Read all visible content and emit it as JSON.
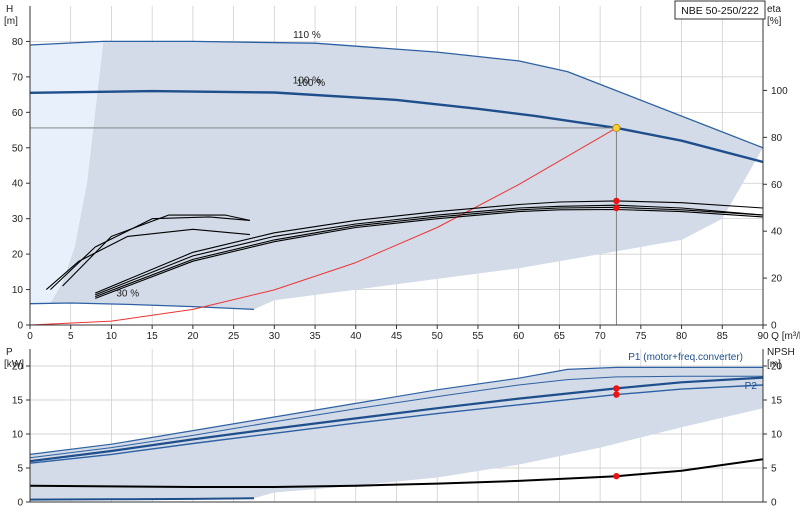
{
  "model": "NBE 50-250/222",
  "chart_data": [
    {
      "type": "line",
      "panel": "head",
      "x_label": "Q",
      "x_unit": "[m³/h]",
      "xlim": [
        0,
        90
      ],
      "x_ticks": [
        0,
        5,
        10,
        15,
        20,
        25,
        30,
        35,
        40,
        45,
        50,
        55,
        60,
        65,
        70,
        75,
        80,
        85,
        90
      ],
      "y_left_label": "H",
      "y_left_unit": "[m]",
      "y_left_lim": [
        0,
        90
      ],
      "y_left_ticks": [
        0,
        10,
        20,
        30,
        40,
        50,
        60,
        70,
        80
      ],
      "y_right_label": "eta",
      "y_right_unit": "[%]",
      "y_right_lim": [
        0,
        136
      ],
      "y_right_ticks": [
        0,
        20,
        40,
        60,
        80,
        100
      ],
      "grid": true,
      "duty_point": {
        "q": 72,
        "h": 55.6
      },
      "eta_markers": [
        {
          "q": 72,
          "h": 35
        },
        {
          "q": 72,
          "h": 33
        }
      ],
      "labels": [
        {
          "text": "110 %",
          "q": 34,
          "h": 81
        },
        {
          "text": "100 %",
          "q": 34,
          "h": 68.2
        },
        {
          "text": "100 %",
          "q": 34.5,
          "h": 67.5
        },
        {
          "text": "30 %",
          "q": 12,
          "h": 8
        }
      ],
      "series": [
        {
          "label": "110 %",
          "q": [
            0,
            9,
            20,
            35,
            50,
            60,
            66,
            90
          ],
          "h": [
            79,
            80,
            80,
            79.5,
            77,
            74.5,
            71.5,
            50
          ]
        },
        {
          "label": "100 %",
          "q": [
            0,
            15,
            30,
            45,
            55,
            62,
            72,
            80,
            90
          ],
          "h": [
            65.5,
            66,
            65.6,
            63.5,
            61,
            59,
            55.6,
            52,
            46
          ]
        },
        {
          "label": "30 %",
          "q": [
            0,
            5,
            12,
            20,
            27.5
          ],
          "h": [
            6,
            6.2,
            5.8,
            5.2,
            4.4
          ]
        },
        {
          "label": "system curve",
          "q": [
            0,
            10,
            20,
            30,
            40,
            50,
            60,
            72
          ],
          "h": [
            0,
            1.1,
            4.4,
            9.9,
            17.6,
            27.5,
            39.6,
            55.6
          ]
        },
        {
          "label": "eta",
          "q": [
            8,
            20,
            30,
            40,
            50,
            60,
            65,
            72,
            80,
            90
          ],
          "h": [
            9,
            20.5,
            26,
            29.5,
            32,
            34,
            34.7,
            35,
            34.5,
            33
          ]
        },
        {
          "label": "eta",
          "q": [
            8,
            20,
            30,
            40,
            50,
            60,
            65,
            72,
            80,
            90
          ],
          "h": [
            8.5,
            19.5,
            25,
            28.5,
            31,
            33,
            33.5,
            33.8,
            33,
            31
          ]
        },
        {
          "label": "eta",
          "q": [
            8,
            20,
            30,
            40,
            50,
            60,
            65,
            72,
            80,
            90
          ],
          "h": [
            8,
            18.5,
            24,
            28,
            30.5,
            32.5,
            33,
            33.2,
            32.5,
            31
          ]
        },
        {
          "label": "eta",
          "q": [
            8,
            20,
            30,
            40,
            50,
            60,
            65,
            72,
            80,
            90
          ],
          "h": [
            7.5,
            18,
            23.5,
            27.5,
            30,
            32,
            32.5,
            32.6,
            32,
            30.5
          ]
        },
        {
          "label": "eta",
          "q": [
            2,
            6,
            12,
            20,
            27
          ],
          "h": [
            10,
            18,
            25,
            27,
            25.5
          ]
        },
        {
          "label": "eta",
          "q": [
            2.5,
            8,
            15,
            22,
            27
          ],
          "h": [
            10,
            22,
            30,
            30.5,
            29.5
          ]
        },
        {
          "label": "eta",
          "q": [
            4,
            10,
            17,
            24,
            27
          ],
          "h": [
            11,
            25,
            31,
            31,
            29.5
          ]
        }
      ]
    },
    {
      "type": "line",
      "panel": "power",
      "x_label": "Q",
      "xlim": [
        0,
        90
      ],
      "y_left_label": "P",
      "y_left_unit": "[kW]",
      "y_left_lim": [
        0,
        22.5
      ],
      "y_left_ticks": [
        0,
        5,
        10,
        15,
        20
      ],
      "y_right_label": "NPSH",
      "y_right_unit": "[m]",
      "y_right_lim": [
        0,
        22.5
      ],
      "y_right_ticks": [
        0,
        5,
        10,
        15,
        20
      ],
      "grid": true,
      "markers": [
        {
          "q": 72,
          "p": 16.7
        },
        {
          "q": 72,
          "p": 15.8
        },
        {
          "q": 72,
          "p": 3.8
        }
      ],
      "series": [
        {
          "label": "P1 (motor+freq.converter)",
          "q": [
            0,
            10,
            20,
            30,
            40,
            50,
            60,
            66,
            72,
            80,
            90
          ],
          "p": [
            7,
            8.5,
            10.5,
            12.5,
            14.5,
            16.5,
            18.2,
            19.5,
            19.8,
            19.8,
            19.8
          ]
        },
        {
          "label": "",
          "q": [
            0,
            10,
            20,
            30,
            40,
            50,
            60,
            66,
            72,
            80,
            90
          ],
          "p": [
            6.5,
            8,
            9.8,
            11.8,
            13.7,
            15.5,
            17.2,
            18,
            18.4,
            18.5,
            18.5
          ]
        },
        {
          "label": "P1 (motor+freq.converter)",
          "q": [
            0,
            10,
            20,
            30,
            40,
            50,
            60,
            72,
            80,
            90
          ],
          "p": [
            6,
            7.5,
            9.2,
            10.8,
            12.3,
            13.8,
            15.2,
            16.7,
            17.6,
            18.3
          ]
        },
        {
          "label": "P2",
          "q": [
            0,
            10,
            20,
            30,
            40,
            50,
            60,
            72,
            80,
            90
          ],
          "p": [
            5.7,
            7,
            8.6,
            10.1,
            11.6,
            13,
            14.3,
            15.8,
            16.6,
            17.2
          ]
        },
        {
          "label": "NPSH",
          "q": [
            0,
            10,
            20,
            30,
            40,
            50,
            60,
            72,
            80,
            90
          ],
          "p": [
            2.4,
            2.3,
            2.2,
            2.2,
            2.4,
            2.7,
            3.1,
            3.8,
            4.6,
            6.3
          ]
        },
        {
          "label": "30 %",
          "q": [
            0,
            10,
            20,
            27.5
          ],
          "p": [
            0.35,
            0.4,
            0.45,
            0.55
          ]
        }
      ],
      "labels": [
        {
          "text": "P1 (motor+freq.converter)",
          "q": 80.5,
          "p": 20.9
        },
        {
          "text": "P2",
          "q": 88.5,
          "p": 16.6
        }
      ]
    }
  ],
  "colors": {
    "envelope_fill": "#d2dbe7",
    "light_area_fill": "#e8f1fb",
    "curve_dark": "#1e4f8c",
    "curve_mid": "#2e61a3",
    "system_curve": "#ee3333",
    "marker": "#ee1111",
    "duty_marker": "#ffcc33",
    "grid": "#c9c9c9",
    "eta_curve": "#000000"
  }
}
